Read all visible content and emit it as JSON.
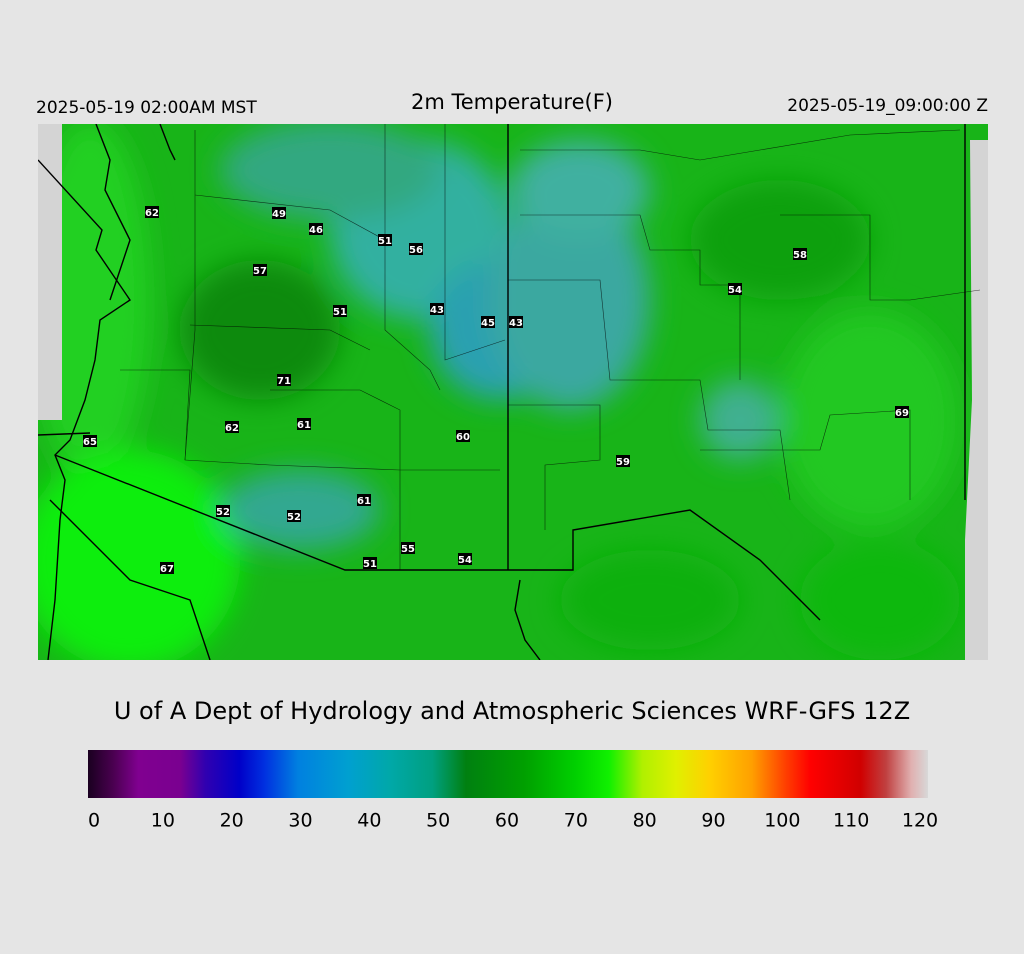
{
  "header": {
    "local_time": "2025-05-19 02:00AM MST",
    "title": "2m Temperature(F)",
    "valid_time": "2025-05-19_09:00:00 Z"
  },
  "stations": {
    "values": [
      62,
      49,
      46,
      51,
      56,
      57,
      58,
      54,
      51,
      43,
      45,
      43,
      71,
      62,
      61,
      60,
      69,
      65,
      59,
      61,
      52,
      52,
      55,
      54,
      51,
      67
    ]
  },
  "credit": "U of A Dept of Hydrology and Atmospheric Sciences WRF-GFS 12Z",
  "colorbar": {
    "range": [
      0,
      120
    ],
    "ticks": [
      0,
      10,
      20,
      30,
      40,
      50,
      60,
      70,
      80,
      90,
      100,
      110,
      120
    ]
  }
}
